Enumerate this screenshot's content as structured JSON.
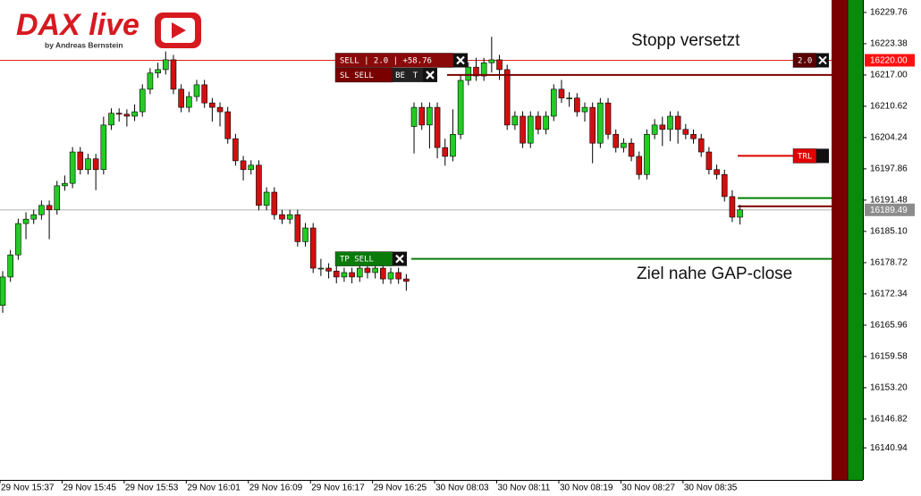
{
  "logo": {
    "title": "DAX live",
    "subtitle": "by Andreas Bernstein"
  },
  "chart_data": {
    "type": "candlestick",
    "annotations": [
      "Stopp versetzt",
      "Ziel nahe GAP-close"
    ],
    "up_color": "#22cc22",
    "down_color": "#d01010",
    "ylim": [
      16134.4,
      16232.3
    ],
    "yticks": [
      16229.76,
      16223.38,
      {
        "value": 16217,
        "label": "16217.00"
      },
      16210.62,
      16204.24,
      16197.86,
      16191.48,
      {
        "value": 16185.1,
        "label": "16185.10"
      },
      16178.72,
      16172.34,
      16165.96,
      16159.58,
      {
        "value": 16153.2,
        "label": "16153.20"
      },
      16146.82,
      16140.94
    ],
    "categories": [
      "29 Nov 15:37",
      null,
      null,
      null,
      null,
      null,
      null,
      null,
      "29 Nov 15:45",
      null,
      null,
      null,
      null,
      null,
      null,
      null,
      "29 Nov 15:53",
      null,
      null,
      null,
      null,
      null,
      null,
      null,
      "29 Nov 16:01",
      null,
      null,
      null,
      null,
      null,
      null,
      null,
      "29 Nov 16:09",
      null,
      null,
      null,
      null,
      null,
      null,
      null,
      "29 Nov 16:17",
      null,
      null,
      null,
      null,
      null,
      null,
      null,
      "29 Nov 16:25",
      null,
      null,
      null,
      null,
      null,
      null,
      null,
      "30 Nov 08:03",
      null,
      null,
      null,
      null,
      null,
      null,
      null,
      "30 Nov 08:11",
      null,
      null,
      null,
      null,
      null,
      null,
      null,
      "30 Nov 08:19",
      null,
      null,
      null,
      null,
      null,
      null,
      null,
      "30 Nov 08:27",
      null,
      null,
      null,
      null,
      null,
      null,
      null,
      "30 Nov 08:35",
      null,
      null,
      null,
      null,
      null,
      null,
      null
    ],
    "open": [
      16170.0,
      16175.8,
      16180.3,
      16186.7,
      16187.6,
      16188.5,
      16190.4,
      16189.5,
      16194.4,
      16194.9,
      16201.3,
      16197.7,
      16199.9,
      16197.7,
      16206.8,
      16209.2,
      16209.0,
      16208.6,
      16209.5,
      16214.1,
      16217.4,
      16218.1,
      16220.1,
      16214.1,
      16210.4,
      16212.6,
      16215.0,
      16211.3,
      16210.4,
      16209.5,
      16204.0,
      16199.5,
      16197.7,
      16198.6,
      16190.4,
      16193.1,
      16188.5,
      16187.6,
      16188.5,
      16183.0,
      16185.8,
      16177.6,
      16177.6,
      16177.0,
      16175.8,
      16176.7,
      16175.8,
      16177.6,
      16176.7,
      16177.6,
      16175.4,
      16176.7,
      16175.4,
      16206.5,
      16210.4,
      16206.8,
      16210.4,
      16202.2,
      16200.4,
      16204.9,
      16215.9,
      16218.6,
      16216.8,
      16219.5,
      16220.1,
      16218.1,
      16206.8,
      16208.6,
      16203.1,
      16208.6,
      16205.9,
      16208.6,
      16214.1,
      16212.3,
      16212.3,
      16209.5,
      16210.4,
      16203.1,
      16211.3,
      16204.9,
      16202.2,
      16203.1,
      16200.4,
      16196.7,
      16204.9,
      16206.8,
      16205.9,
      16208.6,
      16205.9,
      16204.9,
      16204.0,
      16201.3,
      16197.7,
      16196.7,
      16192.2,
      16188.0
    ],
    "high": [
      16177.0,
      16181.3,
      16187.7,
      16189.0,
      16189.5,
      16191.4,
      16191.4,
      16195.4,
      16196.5,
      16202.3,
      16202.3,
      16200.9,
      16200.9,
      16208.5,
      16210.2,
      16210.2,
      16210.0,
      16211.0,
      16215.1,
      16218.4,
      16219.5,
      16221.8,
      16221.1,
      16215.1,
      16213.6,
      16216.0,
      16216.0,
      16212.3,
      16211.4,
      16210.5,
      16205.0,
      16200.5,
      16199.6,
      16199.6,
      16194.1,
      16194.1,
      16189.5,
      16189.5,
      16189.5,
      16186.8,
      16186.8,
      16179.5,
      16178.6,
      16178.0,
      16177.7,
      16177.7,
      16178.6,
      16178.6,
      16178.6,
      16178.6,
      16177.7,
      16177.7,
      16176.4,
      16211.4,
      16211.4,
      16211.4,
      16211.4,
      16204.0,
      16210.0,
      16216.9,
      16219.6,
      16220.5,
      16220.5,
      16224.8,
      16221.1,
      16219.1,
      16209.6,
      16209.6,
      16209.6,
      16209.6,
      16209.6,
      16215.1,
      16216.0,
      16213.5,
      16213.3,
      16211.4,
      16211.4,
      16212.3,
      16212.3,
      16205.9,
      16204.1,
      16204.1,
      16201.4,
      16205.9,
      16208.0,
      16208.5,
      16209.6,
      16209.6,
      16207.0,
      16205.9,
      16205.0,
      16202.3,
      16198.7,
      16197.7,
      16193.5,
      16190.5
    ],
    "low": [
      16168.5,
      16174.8,
      16179.3,
      16183.5,
      16186.6,
      16187.5,
      16183.5,
      16188.5,
      16193.4,
      16193.9,
      16196.7,
      16196.7,
      16193.5,
      16196.7,
      16205.8,
      16207.5,
      16206.5,
      16207.6,
      16208.5,
      16213.1,
      16216.4,
      16217.1,
      16213.1,
      16209.4,
      16209.4,
      16211.6,
      16210.3,
      16207.5,
      16206.5,
      16203.0,
      16198.5,
      16195.5,
      16196.7,
      16189.4,
      16189.4,
      16187.5,
      16186.6,
      16186.6,
      16182.0,
      16182.0,
      16176.6,
      16176.0,
      16175.5,
      16174.5,
      16174.8,
      16174.5,
      16174.8,
      16175.5,
      16175.5,
      16174.4,
      16174.4,
      16174.4,
      16173.0,
      16201.0,
      16205.8,
      16202.0,
      16200.0,
      16198.5,
      16199.4,
      16203.9,
      16214.9,
      16215.8,
      16215.8,
      16217.5,
      16216.0,
      16205.8,
      16205.8,
      16202.1,
      16202.1,
      16204.9,
      16204.9,
      16207.6,
      16211.3,
      16210.5,
      16208.5,
      16207.5,
      16199.0,
      16202.1,
      16203.9,
      16201.2,
      16201.2,
      16199.4,
      16195.7,
      16195.7,
      16203.9,
      16202.5,
      16203.5,
      16203.0,
      16203.9,
      16203.0,
      16200.3,
      16196.7,
      16195.7,
      16191.2,
      16187.0,
      16186.5
    ],
    "close": [
      16175.8,
      16180.3,
      16186.7,
      16187.6,
      16188.5,
      16190.4,
      16189.5,
      16194.4,
      16194.9,
      16201.3,
      16197.7,
      16199.9,
      16197.7,
      16206.8,
      16209.2,
      16209.0,
      16208.6,
      16209.5,
      16214.1,
      16217.4,
      16218.1,
      16220.1,
      16214.1,
      16210.4,
      16212.6,
      16215.0,
      16211.3,
      16210.4,
      16209.5,
      16204.0,
      16199.5,
      16197.7,
      16198.6,
      16190.4,
      16193.1,
      16188.5,
      16187.6,
      16188.5,
      16183.0,
      16185.8,
      16177.6,
      16177.6,
      16177.0,
      16175.8,
      16176.7,
      16175.8,
      16177.6,
      16176.7,
      16177.6,
      16175.4,
      16176.7,
      16175.4,
      16174.9,
      16210.4,
      16206.8,
      16210.4,
      16202.2,
      16200.4,
      16204.9,
      16215.9,
      16218.6,
      16216.8,
      16219.5,
      16220.1,
      16218.1,
      16206.8,
      16208.6,
      16203.1,
      16208.6,
      16205.9,
      16208.6,
      16214.1,
      16212.3,
      16212.3,
      16209.5,
      16210.4,
      16203.1,
      16211.3,
      16204.9,
      16202.2,
      16203.1,
      16200.4,
      16196.7,
      16204.9,
      16206.8,
      16205.9,
      16208.6,
      16205.9,
      16204.9,
      16204.0,
      16201.3,
      16197.7,
      16196.7,
      16192.2,
      16188.0,
      16189.5
    ],
    "orders": [
      {
        "label": "SELL | 2.0 | +58.76",
        "value": 16220.0,
        "color": "#8a0a0a"
      },
      {
        "label": "SL SELL",
        "value": 16217.0,
        "color": "#7a0000",
        "buttons": [
          "BE",
          "T"
        ]
      },
      {
        "label": "TP SELL",
        "value": 16179.5,
        "color": "#0a7a0a"
      },
      {
        "label": "TRL",
        "value": 16200.5,
        "color": "#e00000"
      },
      {
        "label": "2.0",
        "value": 16220.0,
        "color": "#5a0000"
      }
    ],
    "lines": [
      {
        "value": 16220.0,
        "color": "#e02020"
      },
      {
        "value": 16191.9,
        "color": "#008000"
      },
      {
        "value": 16190.2,
        "color": "#800000"
      },
      {
        "value": 16189.49,
        "color": "#b0b0b0"
      }
    ],
    "price_tags": [
      {
        "value": 16220.0,
        "label": "16220.00",
        "color": "#ff1010"
      },
      {
        "value": 16189.49,
        "label": "16189.49",
        "color": "#8c8c8c"
      }
    ]
  }
}
